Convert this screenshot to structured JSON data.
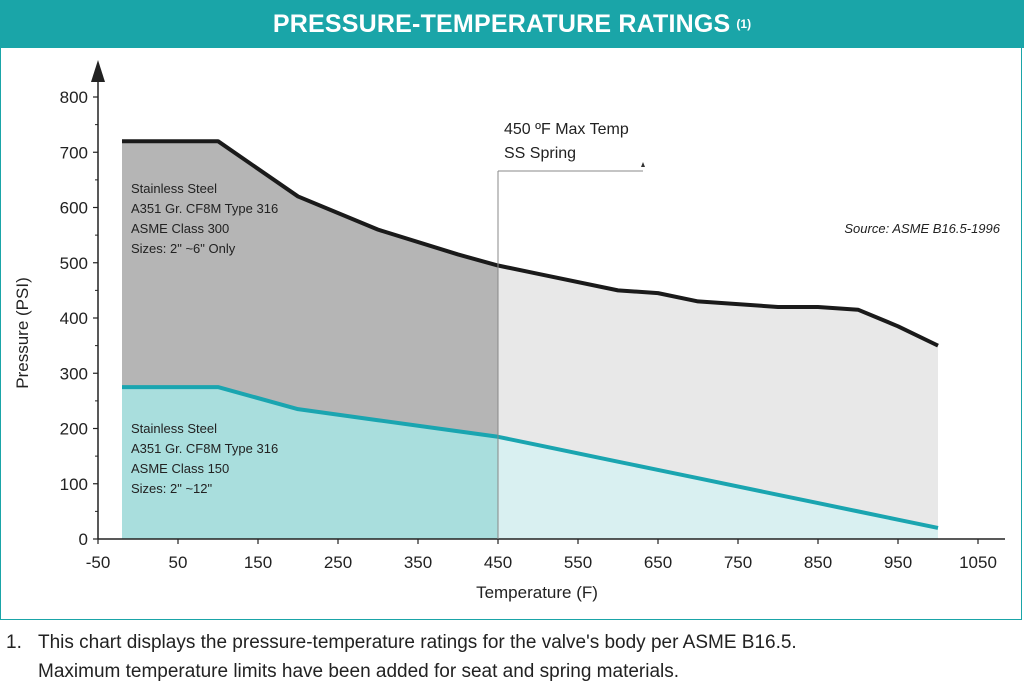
{
  "header": {
    "title": "PRESSURE-TEMPERATURE RATINGS",
    "sup": "(1)"
  },
  "chart_data": {
    "type": "area",
    "xlabel": "Temperature (F)",
    "ylabel": "Pressure (PSI)",
    "xlim": [
      -50,
      1050
    ],
    "ylim": [
      0,
      800
    ],
    "x_ticks": [
      -50,
      50,
      150,
      250,
      350,
      450,
      550,
      650,
      750,
      850,
      950,
      1050
    ],
    "y_ticks": [
      0,
      100,
      200,
      300,
      400,
      500,
      600,
      700,
      800
    ],
    "max_temp_marker": {
      "x": 450,
      "label_line1": "450 ºF Max Temp",
      "label_line2": "SS Spring"
    },
    "source_note": "Source: ASME B16.5-1996",
    "series": [
      {
        "name_lines": [
          "Stainless Steel",
          "A351 Gr. CF8M Type 316",
          "ASME Class 300",
          "Sizes: 2\" ~6\" Only"
        ],
        "color": "#1a1a1a",
        "fill_dark": "#b5b5b5",
        "fill_light": "#e8e8e8",
        "x": [
          -20,
          100,
          200,
          300,
          400,
          450,
          500,
          600,
          650,
          700,
          800,
          850,
          900,
          950,
          1000
        ],
        "y": [
          720,
          720,
          620,
          560,
          515,
          495,
          480,
          450,
          445,
          430,
          420,
          420,
          415,
          385,
          350
        ]
      },
      {
        "name_lines": [
          "Stainless Steel",
          "A351 Gr. CF8M Type 316",
          "ASME Class 150",
          "Sizes: 2\" ~12\""
        ],
        "color": "#1aa5b0",
        "fill_dark": "#a9dedd",
        "fill_light": "#d9f0f1",
        "x": [
          -20,
          100,
          200,
          300,
          400,
          450,
          500,
          600,
          650,
          700,
          800,
          850,
          900,
          950,
          1000
        ],
        "y": [
          275,
          275,
          235,
          215,
          195,
          185,
          170,
          140,
          125,
          110,
          80,
          65,
          50,
          35,
          20
        ]
      }
    ]
  },
  "footnote": {
    "number": "1.",
    "line1": "This chart displays the pressure-temperature ratings for the valve's body per ASME B16.5.",
    "line2": "Maximum temperature limits have been added for seat and spring materials."
  }
}
